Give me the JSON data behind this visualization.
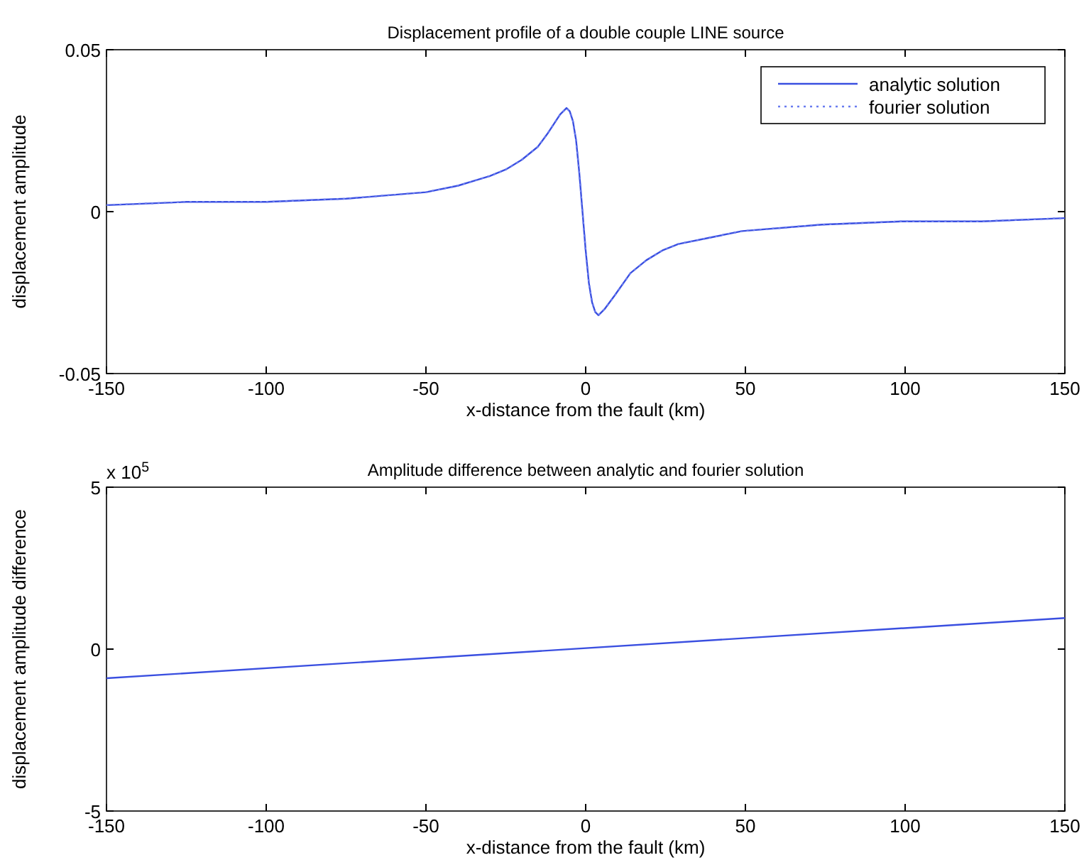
{
  "chart_data": [
    {
      "type": "line",
      "title": "Displacement profile of a double couple LINE source",
      "xlabel": "x-distance from the fault (km)",
      "ylabel": "displacement amplitude",
      "x": [
        -150,
        -125,
        -100,
        -75,
        -50,
        -40,
        -30,
        -25,
        -20,
        -15,
        -12,
        -10,
        -8,
        -6,
        -5,
        -4,
        -3,
        -2,
        -1,
        0,
        1,
        2,
        3,
        4,
        6,
        9,
        14,
        19,
        24,
        29,
        39,
        49,
        74,
        99,
        124,
        150
      ],
      "series": [
        {
          "name": "analytic solution",
          "color": "#3a4fe0",
          "line_style": "solid",
          "values": [
            0.002,
            0.003,
            0.003,
            0.004,
            0.006,
            0.008,
            0.011,
            0.013,
            0.016,
            0.02,
            0.024,
            0.027,
            0.03,
            0.032,
            0.031,
            0.028,
            0.022,
            0.012,
            0,
            -0.012,
            -0.022,
            -0.028,
            -0.031,
            -0.032,
            -0.03,
            -0.026,
            -0.019,
            -0.015,
            -0.012,
            -0.01,
            -0.008,
            -0.006,
            -0.004,
            -0.003,
            -0.003,
            -0.002
          ]
        },
        {
          "name": "fourier solution",
          "color": "#6a7cf0",
          "line_style": "dotted",
          "values": [
            0.002,
            0.003,
            0.003,
            0.004,
            0.006,
            0.008,
            0.011,
            0.013,
            0.016,
            0.02,
            0.024,
            0.027,
            0.03,
            0.032,
            0.031,
            0.028,
            0.022,
            0.012,
            0,
            -0.012,
            -0.022,
            -0.028,
            -0.031,
            -0.032,
            -0.03,
            -0.026,
            -0.019,
            -0.015,
            -0.012,
            -0.01,
            -0.008,
            -0.006,
            -0.004,
            -0.003,
            -0.003,
            -0.002
          ]
        }
      ],
      "xlim": [
        -150,
        150
      ],
      "xticks": [
        -150,
        -100,
        -50,
        0,
        50,
        100,
        150
      ],
      "ylim": [
        -0.05,
        0.05
      ],
      "yticks": [
        -0.05,
        0,
        0.05
      ],
      "legend": "top right"
    },
    {
      "type": "line",
      "title": "Amplitude difference between analytic and fourier solution",
      "xlabel": "x-distance from the fault (km)",
      "ylabel": "displacement amplitude difference",
      "annotations": [
        "x 10$^{5}$"
      ],
      "x": [
        -150,
        150
      ],
      "series": [
        {
          "color": "#3a4fe0",
          "line_style": "solid",
          "values": [
            -0.9,
            0.96
          ]
        }
      ],
      "xlim": [
        -150,
        150
      ],
      "xticks": [
        -150,
        -100,
        -50,
        0,
        50,
        100,
        150
      ],
      "ylim": [
        -5,
        5
      ],
      "yticks": [
        -5,
        0,
        5
      ]
    }
  ]
}
